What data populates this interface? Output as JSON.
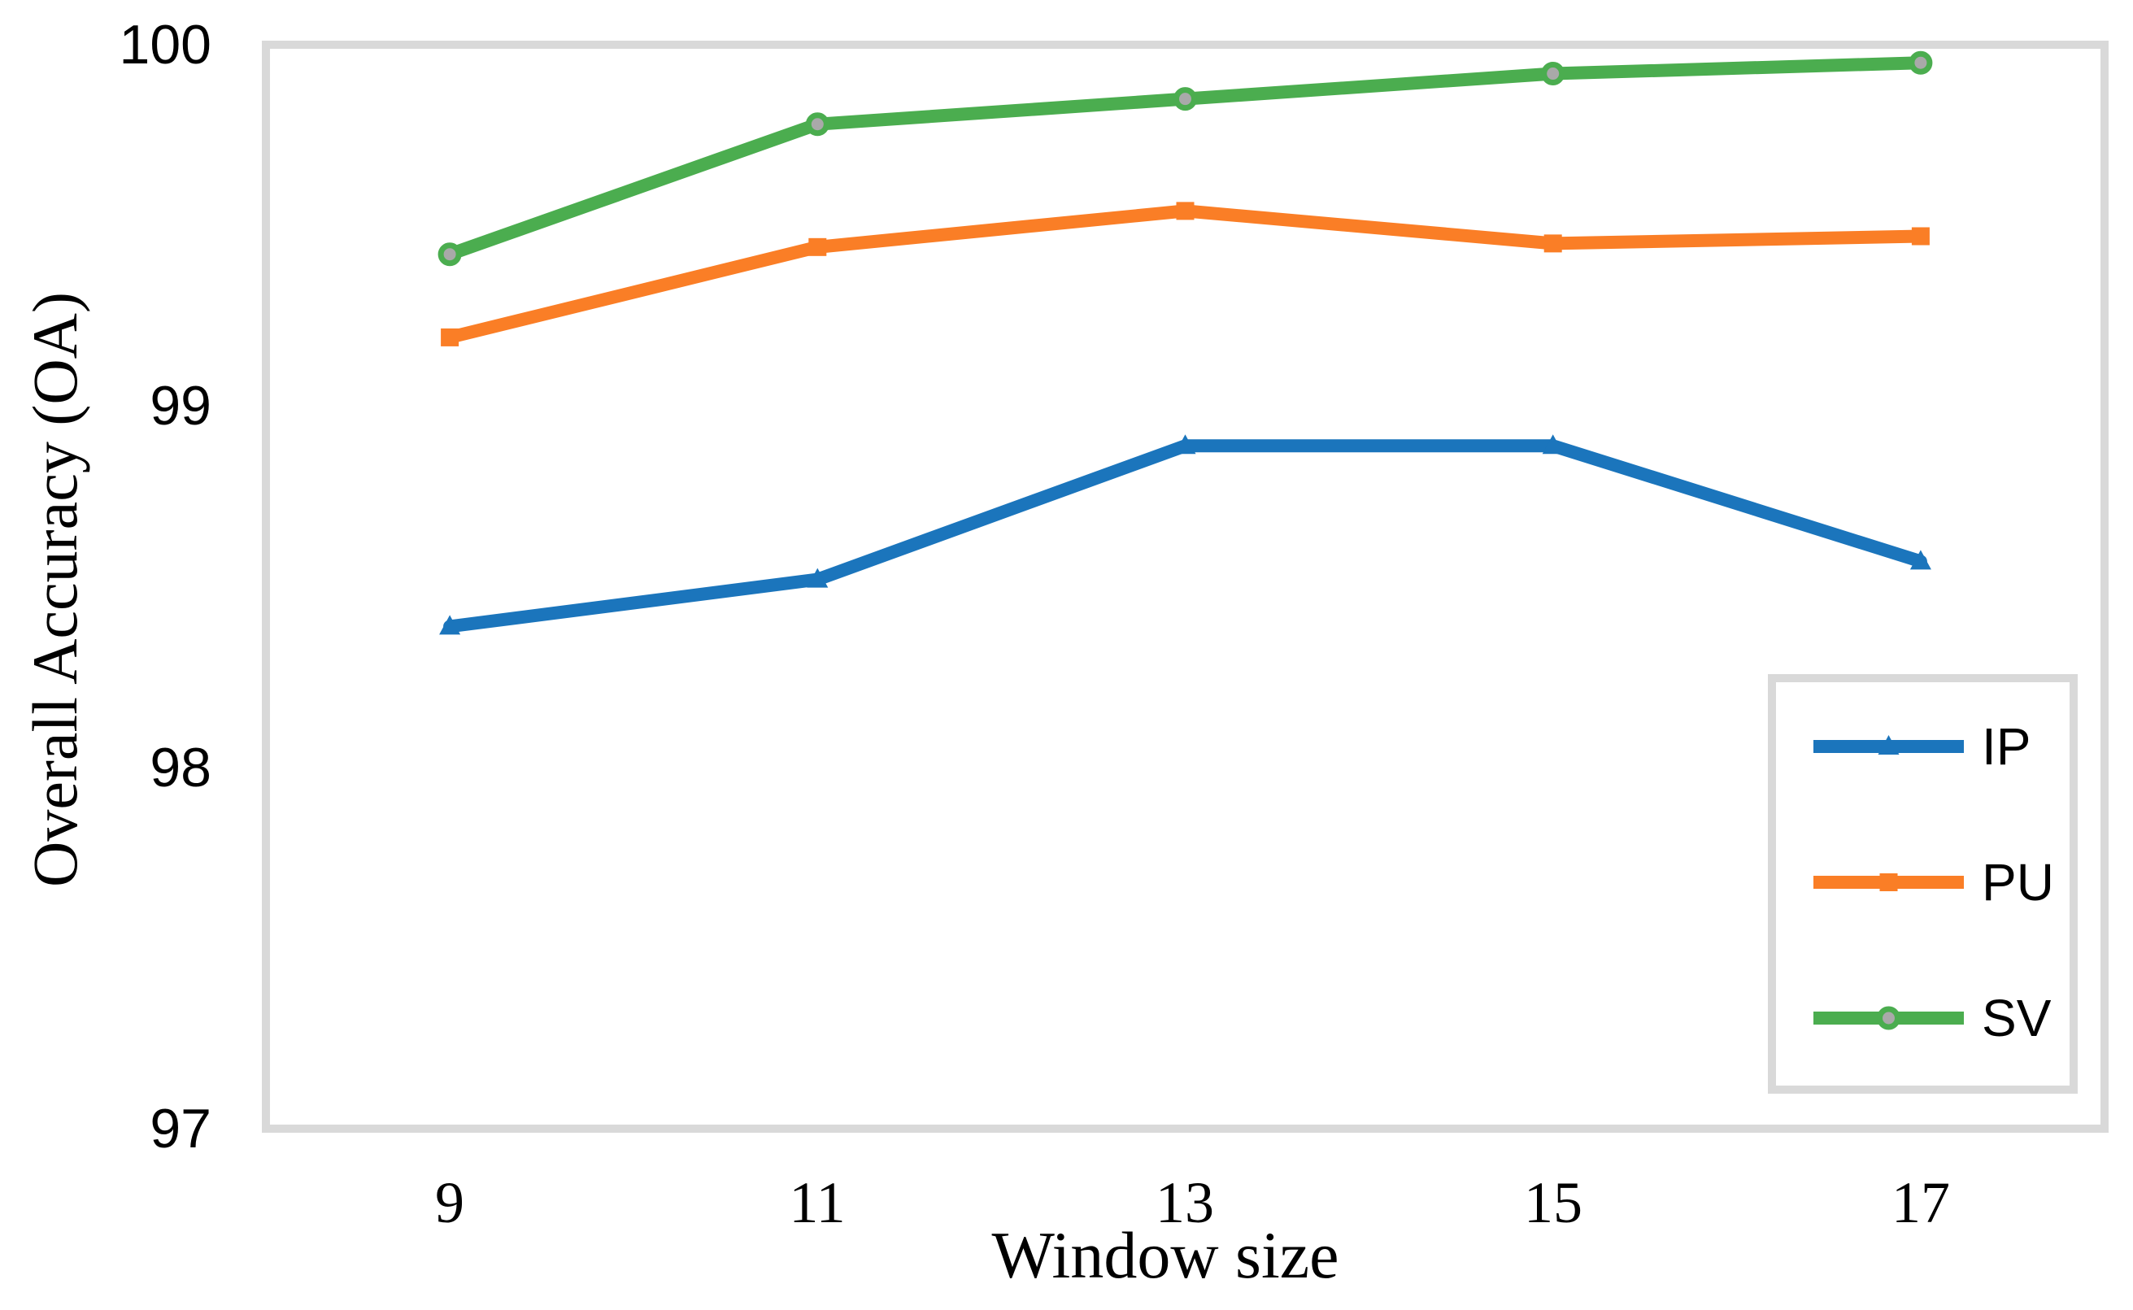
{
  "chart_data": {
    "type": "line",
    "title": "",
    "xlabel": "Window size",
    "ylabel": "Overall Accuracy (OA)",
    "categories": [
      "9",
      "11",
      "13",
      "15",
      "17"
    ],
    "yticks": [
      "100",
      "99",
      "98",
      "97"
    ],
    "ylim": [
      97,
      100
    ],
    "grid": false,
    "legend_position": "inside-right",
    "plot_border_color": "#D9D9D9",
    "background_color": "#FFFFFF",
    "series": [
      {
        "name": "IP",
        "color": "#1B75BC",
        "marker": "triangle",
        "values": [
          98.39,
          98.52,
          98.89,
          98.89,
          98.57
        ]
      },
      {
        "name": "PU",
        "color": "#FA7E26",
        "marker": "square",
        "values": [
          99.19,
          99.44,
          99.54,
          99.45,
          99.47
        ]
      },
      {
        "name": "SV",
        "color": "#4BAD4F",
        "marker": "circle",
        "marker_fill": "#A9A9A9",
        "values": [
          99.42,
          99.78,
          99.85,
          99.92,
          99.95
        ]
      }
    ]
  }
}
